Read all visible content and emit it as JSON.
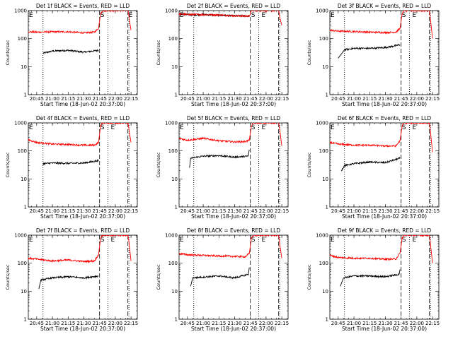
{
  "chart_data": {
    "type": "line",
    "yscale": "log",
    "ylim": [
      1,
      1000
    ],
    "xlim_minutes_from_start": [
      0,
      104
    ],
    "x_tick_labels": [
      "20:45",
      "21:00",
      "21:15",
      "21:30",
      "21:45",
      "22:00",
      "22:15"
    ],
    "y_tick_labels": [
      "1",
      "10",
      "100",
      "1000"
    ],
    "ylabel": "Counts/sec",
    "xlabel": "Start Time (18-Jun-02 20:37:00)",
    "colors": {
      "events": "#000000",
      "lld": "#ff0000"
    },
    "panels": [
      {
        "title": "Det 1f BLACK = Events, RED = LLD",
        "markers": [
          {
            "label": "E",
            "t": "20:37"
          },
          {
            "label": "S",
            "t": "21:45"
          },
          {
            "label": "E",
            "t": "22:12"
          }
        ],
        "vlines": [
          {
            "t": "20:51",
            "style": "dotted"
          },
          {
            "t": "21:45",
            "style": "dashed"
          },
          {
            "t": "21:53",
            "style": "dotted"
          },
          {
            "t": "22:12",
            "style": "dashed"
          },
          {
            "t": "22:13",
            "style": "dotted"
          }
        ],
        "series": [
          {
            "name": "Events",
            "x": [
              "20:51",
              "21:00",
              "21:15",
              "21:30",
              "21:44"
            ],
            "y": [
              30,
              36,
              38,
              33,
              38
            ]
          },
          {
            "name": "LLD",
            "x": [
              "20:37",
              "20:45",
              "21:00",
              "21:15",
              "21:30",
              "21:40",
              "21:44",
              "21:46",
              "21:48",
              "22:12",
              "22:13",
              "22:15"
            ],
            "y": [
              175,
              170,
              175,
              175,
              160,
              170,
              230,
              800,
              1000,
              1000,
              600,
              200
            ]
          }
        ]
      },
      {
        "title": "Det 2f BLACK = Events, RED = LLD",
        "markers": [
          {
            "label": "E",
            "t": "20:37"
          },
          {
            "label": "S",
            "t": "21:45"
          },
          {
            "label": "E",
            "t": "21:55"
          }
        ],
        "vlines": [
          {
            "t": "20:51",
            "style": "dotted"
          },
          {
            "t": "21:45",
            "style": "dashed"
          },
          {
            "t": "21:53",
            "style": "dotted"
          },
          {
            "t": "22:12",
            "style": "dashed"
          },
          {
            "t": "22:13",
            "style": "dotted"
          }
        ],
        "series": [
          {
            "name": "Events",
            "x": [
              "20:37",
              "20:51",
              "21:00",
              "21:15",
              "21:30",
              "21:44"
            ],
            "y": [
              760,
              700,
              720,
              680,
              650,
              640
            ]
          },
          {
            "name": "LLD",
            "x": [
              "20:37",
              "20:45",
              "21:00",
              "21:15",
              "21:30",
              "21:40",
              "21:44",
              "21:46",
              "21:48",
              "22:12",
              "22:13",
              "22:15"
            ],
            "y": [
              760,
              730,
              720,
              700,
              650,
              640,
              640,
              1000,
              1000,
              1000,
              600,
              300
            ]
          }
        ]
      },
      {
        "title": "Det 3f BLACK = Events, RED = LLD",
        "markers": [
          {
            "label": "E",
            "t": "20:37"
          },
          {
            "label": "S",
            "t": "21:45"
          },
          {
            "label": "E",
            "t": "21:55"
          }
        ],
        "vlines": [
          {
            "t": "20:51",
            "style": "dotted"
          },
          {
            "t": "21:45",
            "style": "dashed"
          },
          {
            "t": "21:53",
            "style": "dotted"
          },
          {
            "t": "22:12",
            "style": "dashed"
          },
          {
            "t": "22:13",
            "style": "dotted"
          }
        ],
        "series": [
          {
            "name": "Events",
            "x": [
              "20:45",
              "20:51",
              "21:00",
              "21:15",
              "21:30",
              "21:44"
            ],
            "y": [
              20,
              40,
              45,
              45,
              48,
              60
            ]
          },
          {
            "name": "LLD",
            "x": [
              "20:37",
              "20:45",
              "21:00",
              "21:15",
              "21:30",
              "21:40",
              "21:44",
              "21:46",
              "21:48",
              "22:12",
              "22:13",
              "22:15"
            ],
            "y": [
              200,
              185,
              180,
              170,
              165,
              170,
              230,
              800,
              1000,
              1000,
              500,
              100
            ]
          }
        ]
      },
      {
        "title": "Det 4f BLACK = Events, RED = LLD",
        "markers": [
          {
            "label": "E",
            "t": "20:37"
          },
          {
            "label": "S",
            "t": "21:45"
          },
          {
            "label": "E",
            "t": "21:55"
          }
        ],
        "vlines": [
          {
            "t": "20:51",
            "style": "dotted"
          },
          {
            "t": "21:45",
            "style": "dashed"
          },
          {
            "t": "21:53",
            "style": "dotted"
          },
          {
            "t": "22:12",
            "style": "dashed"
          },
          {
            "t": "22:13",
            "style": "dotted"
          }
        ],
        "series": [
          {
            "name": "Events",
            "x": [
              "20:51",
              "21:00",
              "21:15",
              "21:30",
              "21:44"
            ],
            "y": [
              35,
              37,
              36,
              37,
              45
            ]
          },
          {
            "name": "LLD",
            "x": [
              "20:37",
              "20:45",
              "21:00",
              "21:15",
              "21:30",
              "21:40",
              "21:44",
              "21:46",
              "21:48",
              "22:12",
              "22:13",
              "22:15"
            ],
            "y": [
              250,
              200,
              175,
              170,
              160,
              160,
              200,
              800,
              1000,
              1000,
              600,
              200
            ]
          }
        ]
      },
      {
        "title": "Det 5f BLACK = Events, RED = LLD",
        "markers": [
          {
            "label": "E",
            "t": "20:37"
          },
          {
            "label": "S",
            "t": "21:45"
          },
          {
            "label": "E",
            "t": "21:55"
          }
        ],
        "vlines": [
          {
            "t": "20:51",
            "style": "dotted"
          },
          {
            "t": "21:45",
            "style": "dashed"
          },
          {
            "t": "21:53",
            "style": "dotted"
          },
          {
            "t": "22:12",
            "style": "dashed"
          },
          {
            "t": "22:13",
            "style": "dotted"
          }
        ],
        "series": [
          {
            "name": "Events",
            "x": [
              "20:47",
              "20:48",
              "21:00",
              "21:15",
              "21:30",
              "21:43",
              "21:44"
            ],
            "y": [
              25,
              55,
              65,
              68,
              60,
              65,
              110
            ]
          },
          {
            "name": "LLD",
            "x": [
              "20:37",
              "20:45",
              "21:00",
              "21:15",
              "21:30",
              "21:40",
              "21:44",
              "21:46",
              "21:48",
              "22:12",
              "22:13",
              "22:15"
            ],
            "y": [
              280,
              240,
              280,
              230,
              210,
              215,
              240,
              800,
              1000,
              1000,
              600,
              150
            ]
          }
        ]
      },
      {
        "title": "Det 6f BLACK = Events, RED = LLD",
        "markers": [
          {
            "label": "E",
            "t": "20:37"
          },
          {
            "label": "S",
            "t": "21:45"
          },
          {
            "label": "E",
            "t": "21:55"
          }
        ],
        "vlines": [
          {
            "t": "20:51",
            "style": "dotted"
          },
          {
            "t": "21:45",
            "style": "dashed"
          },
          {
            "t": "21:53",
            "style": "dotted"
          },
          {
            "t": "22:12",
            "style": "dashed"
          },
          {
            "t": "22:13",
            "style": "dotted"
          }
        ],
        "series": [
          {
            "name": "Events",
            "x": [
              "20:48",
              "20:51",
              "21:00",
              "21:15",
              "21:30",
              "21:44"
            ],
            "y": [
              20,
              30,
              35,
              40,
              38,
              55
            ]
          },
          {
            "name": "LLD",
            "x": [
              "20:37",
              "20:45",
              "21:00",
              "21:15",
              "21:30",
              "21:40",
              "21:44",
              "21:46",
              "21:48",
              "22:12",
              "22:13",
              "22:15"
            ],
            "y": [
              200,
              175,
              160,
              160,
              150,
              150,
              230,
              800,
              1000,
              1000,
              500,
              90
            ]
          }
        ]
      },
      {
        "title": "Det 7f BLACK = Events, RED = LLD",
        "markers": [
          {
            "label": "E",
            "t": "20:37"
          },
          {
            "label": "S",
            "t": "21:45"
          },
          {
            "label": "E",
            "t": "21:55"
          }
        ],
        "vlines": [
          {
            "t": "20:51",
            "style": "dotted"
          },
          {
            "t": "21:45",
            "style": "dashed"
          },
          {
            "t": "21:53",
            "style": "dotted"
          },
          {
            "t": "22:12",
            "style": "dashed"
          },
          {
            "t": "22:13",
            "style": "dotted"
          }
        ],
        "series": [
          {
            "name": "Events",
            "x": [
              "20:47",
              "20:49",
              "21:00",
              "21:15",
              "21:30",
              "21:44"
            ],
            "y": [
              12,
              25,
              30,
              33,
              30,
              35
            ]
          },
          {
            "name": "LLD",
            "x": [
              "20:37",
              "20:45",
              "21:00",
              "21:15",
              "21:30",
              "21:40",
              "21:44",
              "21:46",
              "21:48",
              "22:12",
              "22:13",
              "22:15"
            ],
            "y": [
              150,
              140,
              120,
              130,
              115,
              120,
              200,
              800,
              1000,
              1000,
              600,
              120
            ]
          }
        ]
      },
      {
        "title": "Det 8f BLACK = Events, RED = LLD",
        "markers": [
          {
            "label": "E",
            "t": "20:37"
          },
          {
            "label": "S",
            "t": "21:45"
          },
          {
            "label": "E",
            "t": "21:55"
          }
        ],
        "vlines": [
          {
            "t": "20:51",
            "style": "dotted"
          },
          {
            "t": "21:45",
            "style": "dashed"
          },
          {
            "t": "21:53",
            "style": "dotted"
          },
          {
            "t": "22:12",
            "style": "dashed"
          },
          {
            "t": "22:13",
            "style": "dotted"
          }
        ],
        "series": [
          {
            "name": "Events",
            "x": [
              "20:48",
              "20:50",
              "21:00",
              "21:15",
              "21:30",
              "21:43",
              "21:44"
            ],
            "y": [
              15,
              30,
              32,
              35,
              30,
              40,
              70
            ]
          },
          {
            "name": "LLD",
            "x": [
              "20:37",
              "20:45",
              "21:00",
              "21:15",
              "21:30",
              "21:40",
              "21:44",
              "21:46",
              "21:48",
              "22:12",
              "22:13",
              "22:15"
            ],
            "y": [
              220,
              200,
              190,
              180,
              175,
              170,
              220,
              800,
              1000,
              1000,
              500,
              150
            ]
          }
        ]
      },
      {
        "title": "Det 9f BLACK = Events, RED = LLD",
        "markers": [
          {
            "label": "E",
            "t": "20:37"
          },
          {
            "label": "S",
            "t": "21:45"
          },
          {
            "label": "E",
            "t": "21:55"
          }
        ],
        "vlines": [
          {
            "t": "20:51",
            "style": "dotted"
          },
          {
            "t": "21:45",
            "style": "dashed"
          },
          {
            "t": "21:53",
            "style": "dotted"
          },
          {
            "t": "22:12",
            "style": "dashed"
          },
          {
            "t": "22:13",
            "style": "dotted"
          }
        ],
        "series": [
          {
            "name": "Events",
            "x": [
              "20:47",
              "20:50",
              "21:00",
              "21:15",
              "21:30",
              "21:43",
              "21:44"
            ],
            "y": [
              15,
              30,
              35,
              35,
              33,
              40,
              60
            ]
          },
          {
            "name": "LLD",
            "x": [
              "20:37",
              "20:45",
              "21:00",
              "21:15",
              "21:30",
              "21:40",
              "21:44",
              "21:46",
              "21:48",
              "22:12",
              "22:13",
              "22:15"
            ],
            "y": [
              190,
              160,
              150,
              150,
              140,
              140,
              230,
              800,
              1000,
              1000,
              500,
              100
            ]
          }
        ]
      }
    ]
  }
}
